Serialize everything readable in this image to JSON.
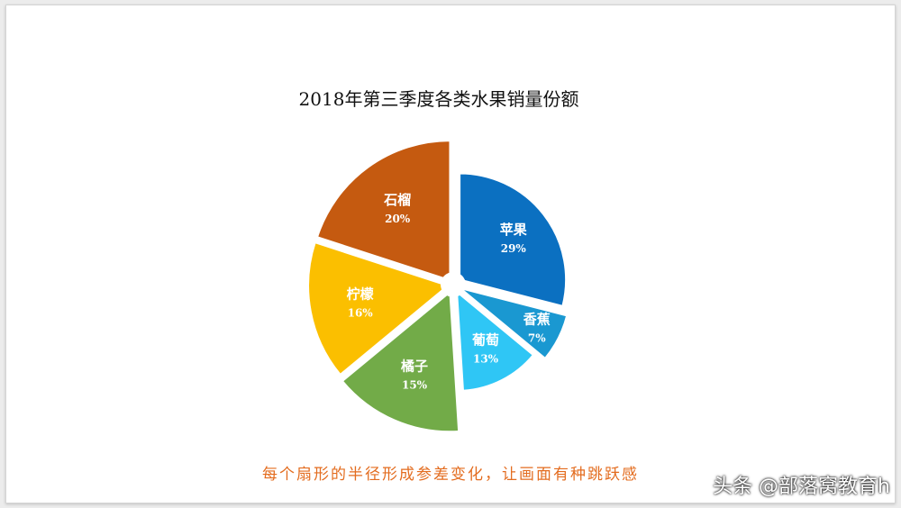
{
  "chart_data": {
    "type": "pie",
    "title": "2018年第三季度各类水果销量份额",
    "series": [
      {
        "name": "苹果",
        "value": 29,
        "label": "29%",
        "color": "#0b70c1"
      },
      {
        "name": "香蕉",
        "value": 7,
        "label": "7%",
        "color": "#1a98d1"
      },
      {
        "name": "葡萄",
        "value": 13,
        "label": "13%",
        "color": "#2fc6f5"
      },
      {
        "name": "橘子",
        "value": 15,
        "label": "15%",
        "color": "#72ab48"
      },
      {
        "name": "柠檬",
        "value": 16,
        "label": "16%",
        "color": "#fbbf00"
      },
      {
        "name": "石榴",
        "value": 20,
        "label": "20%",
        "color": "#c55a10"
      }
    ],
    "variable_radius": true
  },
  "caption": "每个扇形的半径形成参差变化，让画面有种跳跃感",
  "watermark": "头条 @部落窝教育h"
}
